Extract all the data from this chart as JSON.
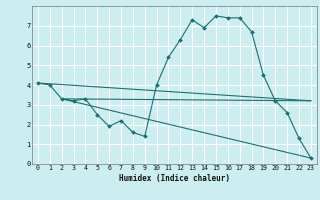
{
  "xlabel": "Humidex (Indice chaleur)",
  "bg_color": "#cceef0",
  "grid_color": "#ffffff",
  "line_color": "#1a7070",
  "xlim": [
    -0.5,
    23.5
  ],
  "ylim": [
    0,
    8
  ],
  "xticks": [
    0,
    1,
    2,
    3,
    4,
    5,
    6,
    7,
    8,
    9,
    10,
    11,
    12,
    13,
    14,
    15,
    16,
    17,
    18,
    19,
    20,
    21,
    22,
    23
  ],
  "yticks": [
    0,
    1,
    2,
    3,
    4,
    5,
    6,
    7
  ],
  "series": [
    {
      "x": [
        0,
        1,
        2,
        3,
        4,
        5,
        6,
        7,
        8,
        9,
        10,
        11,
        12,
        13,
        14,
        15,
        16,
        17,
        18,
        19,
        20,
        21,
        22,
        23
      ],
      "y": [
        4.1,
        4.0,
        3.3,
        3.2,
        3.3,
        2.5,
        1.9,
        2.2,
        1.6,
        1.4,
        4.0,
        5.4,
        6.3,
        7.3,
        6.9,
        7.5,
        7.4,
        7.4,
        6.7,
        4.5,
        3.2,
        2.6,
        1.3,
        0.3
      ],
      "marker": "D"
    },
    {
      "x": [
        0,
        23
      ],
      "y": [
        4.1,
        3.2
      ],
      "marker": null
    },
    {
      "x": [
        2,
        23
      ],
      "y": [
        3.3,
        3.2
      ],
      "marker": null
    },
    {
      "x": [
        2,
        23
      ],
      "y": [
        3.3,
        0.3
      ],
      "marker": null
    }
  ]
}
